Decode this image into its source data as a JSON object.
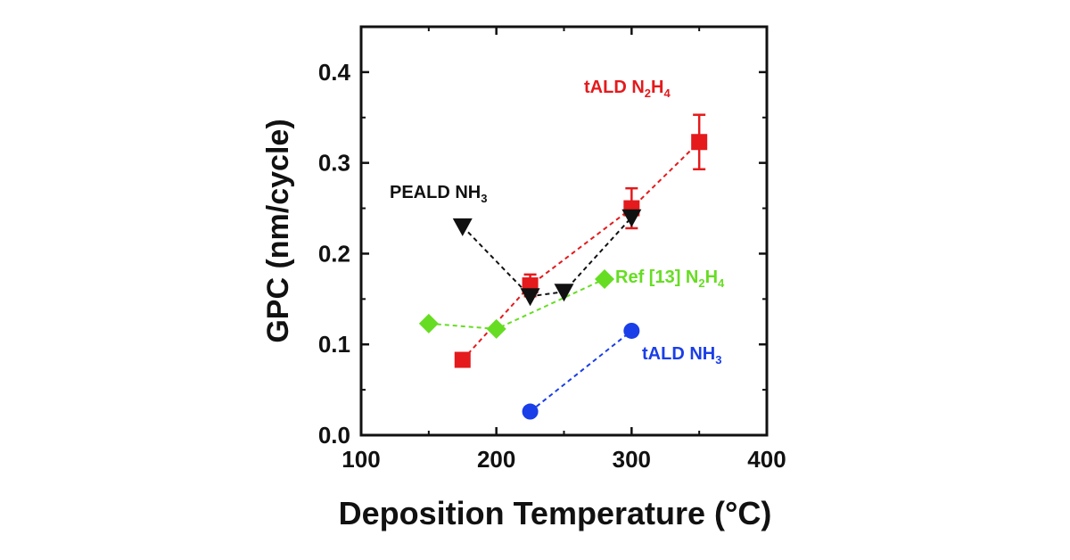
{
  "chart_data": {
    "type": "scatter",
    "xlabel": "Deposition Temperature (°C)",
    "ylabel": "GPC (nm/cycle)",
    "xlim": [
      100,
      400
    ],
    "ylim": [
      0.0,
      0.45
    ],
    "xticks": [
      100,
      200,
      300,
      400
    ],
    "yticks": [
      0.0,
      0.1,
      0.2,
      0.3,
      0.4
    ],
    "ytick_labels": [
      "0.0",
      "0.1",
      "0.2",
      "0.3",
      "0.4"
    ],
    "grid": false,
    "series": [
      {
        "id": "tald_n2h4",
        "label_main": "tALD N",
        "label_parts": [
          [
            "tALD N",
            ""
          ],
          [
            "2",
            "sub"
          ],
          [
            "H",
            ""
          ],
          [
            "4",
            "sub"
          ]
        ],
        "color": "#e41a1c",
        "marker": "square",
        "x": [
          175,
          225,
          300,
          350
        ],
        "y": [
          0.083,
          0.165,
          0.25,
          0.323
        ],
        "yerr": [
          0,
          0.012,
          0.022,
          0.03
        ]
      },
      {
        "id": "peald_nh3",
        "label_parts": [
          [
            "PEALD NH",
            ""
          ],
          [
            "3",
            "sub"
          ]
        ],
        "color": "#111111",
        "marker": "triangle-down",
        "x": [
          175,
          225,
          250,
          300
        ],
        "y": [
          0.23,
          0.153,
          0.158,
          0.24
        ],
        "yerr": [
          0,
          0,
          0,
          0
        ]
      },
      {
        "id": "ref13_n2h4",
        "label_parts": [
          [
            "Ref [13] N",
            ""
          ],
          [
            "2",
            "sub"
          ],
          [
            "H",
            ""
          ],
          [
            "4",
            "sub"
          ]
        ],
        "color": "#66dd22",
        "marker": "diamond",
        "x": [
          150,
          200,
          280
        ],
        "y": [
          0.123,
          0.117,
          0.172
        ],
        "yerr": [
          0,
          0,
          0
        ]
      },
      {
        "id": "tald_nh3",
        "label_parts": [
          [
            "tALD NH",
            ""
          ],
          [
            "3",
            "sub"
          ]
        ],
        "color": "#1a3ee8",
        "marker": "circle",
        "x": [
          225,
          300
        ],
        "y": [
          0.026,
          0.115
        ],
        "yerr": [
          0,
          0
        ]
      }
    ]
  }
}
